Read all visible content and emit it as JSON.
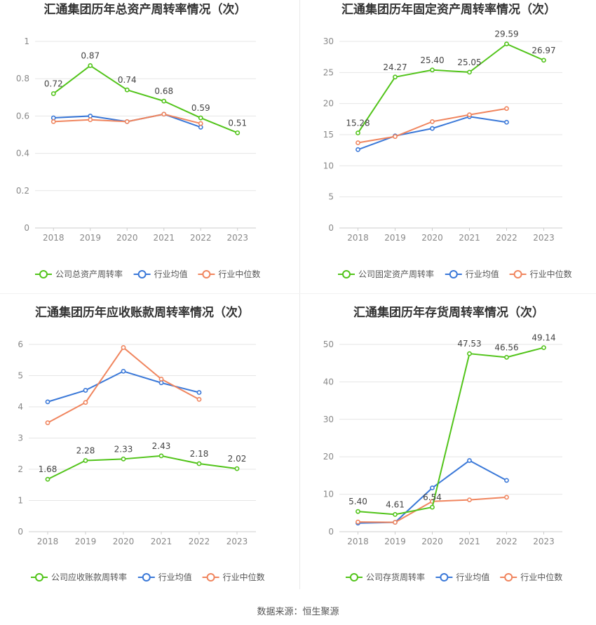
{
  "colors": {
    "company": "#52c41a",
    "avg": "#3a78d8",
    "median": "#f0855e",
    "grid": "#e6e6e6",
    "axis": "#cccccc",
    "title": "#333333",
    "tick": "#888888",
    "label": "#444444"
  },
  "source": "数据来源：恒生聚源",
  "chart_data": [
    {
      "type": "line",
      "title": "汇通集团历年总资产周转率情况（次）",
      "categories": [
        "2018",
        "2019",
        "2020",
        "2021",
        "2022",
        "2023"
      ],
      "ylim": [
        0,
        1
      ],
      "yticks": [
        0,
        0.2,
        0.4,
        0.6,
        0.8,
        1
      ],
      "ytick_labels": [
        "0",
        "0.2",
        "0.4",
        "0.6",
        "0.8",
        "1"
      ],
      "grid": true,
      "legend_position": "bottom",
      "series": [
        {
          "name": "公司总资产周转率",
          "values": [
            0.72,
            0.87,
            0.74,
            0.68,
            0.59,
            0.51
          ],
          "labels": [
            "0.72",
            "0.87",
            "0.74",
            "0.68",
            "0.59",
            "0.51"
          ]
        },
        {
          "name": "行业均值",
          "values": [
            0.59,
            0.6,
            0.57,
            0.61,
            0.54,
            null
          ]
        },
        {
          "name": "行业中位数",
          "values": [
            0.57,
            0.58,
            0.57,
            0.61,
            0.56,
            null
          ]
        }
      ]
    },
    {
      "type": "line",
      "title": "汇通集团历年固定资产周转率情况（次）",
      "categories": [
        "2018",
        "2019",
        "2020",
        "2021",
        "2022",
        "2023"
      ],
      "ylim": [
        0,
        30
      ],
      "yticks": [
        0,
        5,
        10,
        15,
        20,
        25,
        30
      ],
      "ytick_labels": [
        "0",
        "5",
        "10",
        "15",
        "20",
        "25",
        "30"
      ],
      "grid": true,
      "legend_position": "bottom",
      "series": [
        {
          "name": "公司固定资产周转率",
          "values": [
            15.28,
            24.27,
            25.4,
            25.05,
            29.59,
            26.97
          ],
          "labels": [
            "15.28",
            "24.27",
            "25.40",
            "25.05",
            "29.59",
            "26.97"
          ]
        },
        {
          "name": "行业均值",
          "values": [
            12.6,
            14.8,
            16.0,
            17.9,
            17.0,
            null
          ]
        },
        {
          "name": "行业中位数",
          "values": [
            13.7,
            14.7,
            17.1,
            18.2,
            19.2,
            null
          ]
        }
      ]
    },
    {
      "type": "line",
      "title": "汇通集团历年应收账款周转率情况（次）",
      "categories": [
        "2018",
        "2019",
        "2020",
        "2021",
        "2022",
        "2023"
      ],
      "ylim": [
        0,
        6
      ],
      "yticks": [
        0,
        1,
        2,
        3,
        4,
        5,
        6
      ],
      "ytick_labels": [
        "0",
        "1",
        "2",
        "3",
        "4",
        "5",
        "6"
      ],
      "grid": true,
      "legend_position": "bottom",
      "series": [
        {
          "name": "公司应收账款周转率",
          "values": [
            1.68,
            2.28,
            2.33,
            2.43,
            2.18,
            2.02
          ],
          "labels": [
            "1.68",
            "2.28",
            "2.33",
            "2.43",
            "2.18",
            "2.02"
          ]
        },
        {
          "name": "行业均值",
          "values": [
            4.16,
            4.53,
            5.14,
            4.77,
            4.46,
            null
          ]
        },
        {
          "name": "行业中位数",
          "values": [
            3.49,
            4.14,
            5.9,
            4.89,
            4.24,
            null
          ]
        }
      ]
    },
    {
      "type": "line",
      "title": "汇通集团历年存货周转率情况（次）",
      "categories": [
        "2018",
        "2019",
        "2020",
        "2021",
        "2022",
        "2023"
      ],
      "ylim": [
        0,
        50
      ],
      "yticks": [
        0,
        10,
        20,
        30,
        40,
        50
      ],
      "ytick_labels": [
        "0",
        "10",
        "20",
        "30",
        "40",
        "50"
      ],
      "grid": true,
      "legend_position": "bottom",
      "series": [
        {
          "name": "公司存货周转率",
          "values": [
            5.4,
            4.61,
            6.54,
            47.53,
            46.56,
            49.14
          ],
          "labels": [
            "5.40",
            "4.61",
            "6.54",
            "47.53",
            "46.56",
            "49.14"
          ]
        },
        {
          "name": "行业均值",
          "values": [
            2.3,
            2.5,
            11.7,
            19.0,
            13.7,
            null
          ]
        },
        {
          "name": "行业中位数",
          "values": [
            2.6,
            2.5,
            8.1,
            8.5,
            9.2,
            null
          ]
        }
      ]
    }
  ]
}
